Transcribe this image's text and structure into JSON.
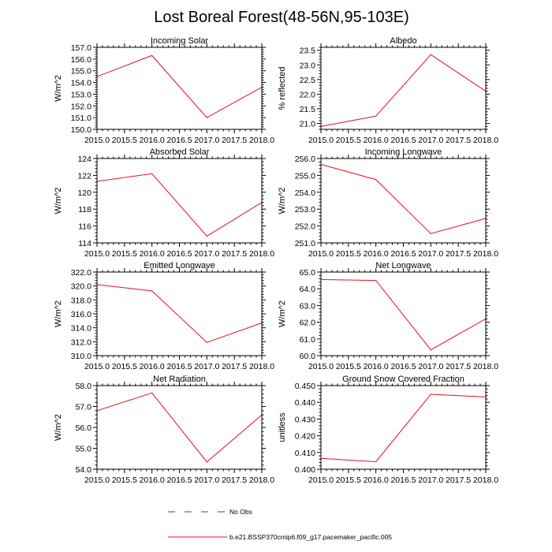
{
  "title": "Lost Boreal Forest(48-56N,95-103E)",
  "legend": {
    "obs_label": "No Obs",
    "obs_color": "#3b4a8f",
    "model_label": "b.e21.BSSP370cmip6.f09_g17.pacemaker_pacific.005",
    "model_color": "#e8101c"
  },
  "chart_data": [
    {
      "type": "line",
      "title": "Incoming Solar",
      "ylabel": "W/m^2",
      "x": [
        2015.0,
        2016.0,
        2017.0,
        2018.0
      ],
      "series": [
        {
          "values": [
            154.5,
            156.3,
            151.0,
            153.6
          ]
        }
      ],
      "xlim": [
        2015.0,
        2018.0
      ],
      "ylim": [
        150.0,
        157.0
      ],
      "yticks": [
        150.0,
        151.0,
        152.0,
        153.0,
        154.0,
        155.0,
        156.0,
        157.0
      ],
      "ytick_labels": [
        "150.0",
        "151.0",
        "152.0",
        "153.0",
        "154.0",
        "155.0",
        "156.0",
        "157.0"
      ],
      "xticks": [
        2015.0,
        2015.5,
        2016.0,
        2016.5,
        2017.0,
        2017.5,
        2018.0
      ],
      "xtick_labels": [
        "2015.0",
        "2015.5",
        "2016.0",
        "2016.5",
        "2017.0",
        "2017.5",
        "2018.0"
      ]
    },
    {
      "type": "line",
      "title": "Albedo",
      "ylabel": "% reflected",
      "x": [
        2015.0,
        2016.0,
        2017.0,
        2018.0
      ],
      "series": [
        {
          "values": [
            20.9,
            21.25,
            23.35,
            22.1
          ]
        }
      ],
      "xlim": [
        2015.0,
        2018.0
      ],
      "ylim": [
        20.8,
        23.6
      ],
      "yticks": [
        21.0,
        21.5,
        22.0,
        22.5,
        23.0,
        23.5
      ],
      "ytick_labels": [
        "21.0",
        "21.5",
        "22.0",
        "22.5",
        "23.0",
        "23.5"
      ],
      "xticks": [
        2015.0,
        2015.5,
        2016.0,
        2016.5,
        2017.0,
        2017.5,
        2018.0
      ],
      "xtick_labels": [
        "2015.0",
        "2015.5",
        "2016.0",
        "2016.5",
        "2017.0",
        "2017.5",
        "2018.0"
      ]
    },
    {
      "type": "line",
      "title": "Absorbed Solar",
      "ylabel": "W/m^2",
      "x": [
        2015.0,
        2016.0,
        2017.0,
        2018.0
      ],
      "series": [
        {
          "values": [
            121.3,
            122.2,
            114.8,
            118.8
          ]
        }
      ],
      "xlim": [
        2015.0,
        2018.0
      ],
      "ylim": [
        114.0,
        124.0
      ],
      "yticks": [
        114,
        116,
        118,
        120,
        122,
        124
      ],
      "ytick_labels": [
        "114",
        "116",
        "118",
        "120",
        "122",
        "124"
      ],
      "xticks": [
        2015.0,
        2015.5,
        2016.0,
        2016.5,
        2017.0,
        2017.5,
        2018.0
      ],
      "xtick_labels": [
        "2015.0",
        "2015.5",
        "2016.0",
        "2016.5",
        "2017.0",
        "2017.5",
        "2018.0"
      ]
    },
    {
      "type": "line",
      "title": "Incoming Longwave",
      "ylabel": "W/m^2",
      "x": [
        2015.0,
        2016.0,
        2017.0,
        2018.0
      ],
      "series": [
        {
          "values": [
            255.65,
            254.75,
            251.55,
            252.45
          ]
        }
      ],
      "xlim": [
        2015.0,
        2018.0
      ],
      "ylim": [
        251.0,
        256.0
      ],
      "yticks": [
        251.0,
        252.0,
        253.0,
        254.0,
        255.0,
        256.0
      ],
      "ytick_labels": [
        "251.0",
        "252.0",
        "253.0",
        "254.0",
        "255.0",
        "256.0"
      ],
      "xticks": [
        2015.0,
        2015.5,
        2016.0,
        2016.5,
        2017.0,
        2017.5,
        2018.0
      ],
      "xtick_labels": [
        "2015.0",
        "2015.5",
        "2016.0",
        "2016.5",
        "2017.0",
        "2017.5",
        "2018.0"
      ]
    },
    {
      "type": "line",
      "title": "Emitted Longwave",
      "ylabel": "W/m^2",
      "x": [
        2015.0,
        2016.0,
        2017.0,
        2018.0
      ],
      "series": [
        {
          "values": [
            320.2,
            319.3,
            311.9,
            314.7
          ]
        }
      ],
      "xlim": [
        2015.0,
        2018.0
      ],
      "ylim": [
        310.0,
        322.0
      ],
      "yticks": [
        310.0,
        312.0,
        314.0,
        316.0,
        318.0,
        320.0,
        322.0
      ],
      "ytick_labels": [
        "310.0",
        "312.0",
        "314.0",
        "316.0",
        "318.0",
        "320.0",
        "322.0"
      ],
      "xticks": [
        2015.0,
        2015.5,
        2016.0,
        2016.5,
        2017.0,
        2017.5,
        2018.0
      ],
      "xtick_labels": [
        "2015.0",
        "2015.5",
        "2016.0",
        "2016.5",
        "2017.0",
        "2017.5",
        "2018.0"
      ]
    },
    {
      "type": "line",
      "title": "Net Longwave",
      "ylabel": "W/m^2",
      "x": [
        2015.0,
        2016.0,
        2017.0,
        2018.0
      ],
      "series": [
        {
          "values": [
            64.55,
            64.5,
            60.35,
            62.2
          ]
        }
      ],
      "xlim": [
        2015.0,
        2018.0
      ],
      "ylim": [
        60.0,
        65.0
      ],
      "yticks": [
        60.0,
        61.0,
        62.0,
        63.0,
        64.0,
        65.0
      ],
      "ytick_labels": [
        "60.0",
        "61.0",
        "62.0",
        "63.0",
        "64.0",
        "65.0"
      ],
      "xticks": [
        2015.0,
        2015.5,
        2016.0,
        2016.5,
        2017.0,
        2017.5,
        2018.0
      ],
      "xtick_labels": [
        "2015.0",
        "2015.5",
        "2016.0",
        "2016.5",
        "2017.0",
        "2017.5",
        "2018.0"
      ]
    },
    {
      "type": "line",
      "title": "Net Radiation",
      "ylabel": "W/m^2",
      "x": [
        2015.0,
        2016.0,
        2017.0,
        2018.0
      ],
      "series": [
        {
          "values": [
            56.8,
            57.65,
            54.35,
            56.6
          ]
        }
      ],
      "xlim": [
        2015.0,
        2018.0
      ],
      "ylim": [
        54.0,
        58.0
      ],
      "yticks": [
        54.0,
        55.0,
        56.0,
        57.0,
        58.0
      ],
      "ytick_labels": [
        "54.0",
        "55.0",
        "56.0",
        "57.0",
        "58.0"
      ],
      "xticks": [
        2015.0,
        2015.5,
        2016.0,
        2016.5,
        2017.0,
        2017.5,
        2018.0
      ],
      "xtick_labels": [
        "2015.0",
        "2015.5",
        "2016.0",
        "2016.5",
        "2017.0",
        "2017.5",
        "2018.0"
      ]
    },
    {
      "type": "line",
      "title": "Ground Snow Covered Fraction",
      "ylabel": "unitless",
      "x": [
        2015.0,
        2016.0,
        2017.0,
        2018.0
      ],
      "series": [
        {
          "values": [
            0.4065,
            0.4045,
            0.4448,
            0.4432
          ]
        }
      ],
      "xlim": [
        2015.0,
        2018.0
      ],
      "ylim": [
        0.4,
        0.45
      ],
      "yticks": [
        0.4,
        0.41,
        0.42,
        0.43,
        0.44,
        0.45
      ],
      "ytick_labels": [
        "0.400",
        "0.410",
        "0.420",
        "0.430",
        "0.440",
        "0.450"
      ],
      "xticks": [
        2015.0,
        2015.5,
        2016.0,
        2016.5,
        2017.0,
        2017.5,
        2018.0
      ],
      "xtick_labels": [
        "2015.0",
        "2015.5",
        "2016.0",
        "2016.5",
        "2017.0",
        "2017.5",
        "2018.0"
      ]
    }
  ]
}
